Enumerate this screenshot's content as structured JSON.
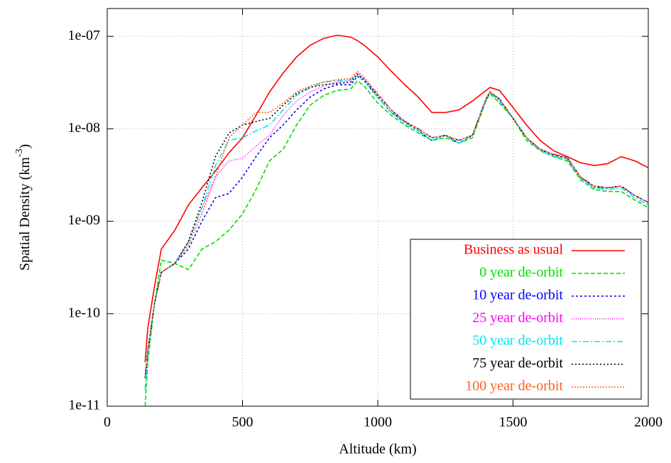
{
  "chart_data": {
    "type": "line",
    "log_y": true,
    "grid": true,
    "legend": "lower right",
    "x_label": "Altitude (km)",
    "y_label": "Spatial Density (km",
    "y_label_sup": "-3",
    "y_label_end": ")",
    "xlim": [
      0,
      2000
    ],
    "xticks": [
      0,
      500,
      1000,
      1500,
      2000
    ],
    "ylim": [
      1e-11,
      2e-07
    ],
    "yticks": [
      {
        "value": 1e-11,
        "label": "1e-11"
      },
      {
        "value": 1e-10,
        "label": "1e-10"
      },
      {
        "value": 1e-09,
        "label": "1e-09"
      },
      {
        "value": 1e-08,
        "label": "1e-08"
      },
      {
        "value": 1e-07,
        "label": "1e-07"
      }
    ],
    "x": [
      140,
      150,
      175,
      200,
      250,
      300,
      350,
      400,
      450,
      500,
      550,
      600,
      650,
      700,
      750,
      800,
      850,
      900,
      925,
      950,
      1000,
      1050,
      1100,
      1150,
      1200,
      1250,
      1300,
      1350,
      1400,
      1415,
      1450,
      1500,
      1550,
      1600,
      1650,
      1700,
      1750,
      1800,
      1850,
      1900,
      1950,
      2000
    ],
    "series": [
      {
        "name": "Business as usual",
        "color": "#ff0000",
        "values": [
          3e-11,
          7e-11,
          2e-10,
          5e-10,
          8e-10,
          1.5e-09,
          2.3e-09,
          3.5e-09,
          5.5e-09,
          8e-09,
          1.4e-08,
          2.5e-08,
          4e-08,
          6e-08,
          8e-08,
          9.5e-08,
          1.03e-07,
          9.8e-08,
          9e-08,
          8e-08,
          6e-08,
          4.2e-08,
          3e-08,
          2.2e-08,
          1.5e-08,
          1.5e-08,
          1.6e-08,
          2e-08,
          2.6e-08,
          2.8e-08,
          2.6e-08,
          1.7e-08,
          1.1e-08,
          7.5e-09,
          5.8e-09,
          5e-09,
          4.3e-09,
          4e-09,
          4.2e-09,
          5e-09,
          4.5e-09,
          3.8e-09
        ]
      },
      {
        "name": "0 year de-orbit",
        "color": "#00dd00",
        "dash": "6,3",
        "values": [
          1e-11,
          3e-11,
          1.3e-10,
          3.8e-10,
          3.5e-10,
          3e-10,
          5e-10,
          6e-10,
          8e-10,
          1.2e-09,
          2.2e-09,
          4.5e-09,
          6e-09,
          1.1e-08,
          1.8e-08,
          2.3e-08,
          2.6e-08,
          2.7e-08,
          3.3e-08,
          2.9e-08,
          1.9e-08,
          1.4e-08,
          1.1e-08,
          9e-09,
          7.5e-09,
          8e-09,
          7e-09,
          8e-09,
          2e-08,
          2.4e-08,
          1.9e-08,
          1.3e-08,
          7.5e-09,
          5.8e-09,
          5e-09,
          4.5e-09,
          2.8e-09,
          2.2e-09,
          2.1e-09,
          2.1e-09,
          1.7e-09,
          1.4e-09
        ]
      },
      {
        "name": "10 year de-orbit",
        "color": "#0000ff",
        "dash": "3,3",
        "values": [
          2e-11,
          4e-11,
          1.3e-10,
          2.8e-10,
          3.5e-10,
          5e-10,
          1e-09,
          1.8e-09,
          2e-09,
          3e-09,
          5e-09,
          8e-09,
          1.1e-08,
          1.6e-08,
          2.2e-08,
          2.7e-08,
          3e-08,
          3e-08,
          3.7e-08,
          3.3e-08,
          2.2e-08,
          1.5e-08,
          1.2e-08,
          9.5e-09,
          7.5e-09,
          8.5e-09,
          7e-09,
          8.5e-09,
          2.1e-08,
          2.5e-08,
          2.1e-08,
          1.3e-08,
          8e-09,
          6e-09,
          5.2e-09,
          4.8e-09,
          3e-09,
          2.3e-09,
          2.3e-09,
          2.4e-09,
          1.9e-09,
          1.6e-09
        ]
      },
      {
        "name": "25 year de-orbit",
        "color": "#ff00ff",
        "dash": "1,2",
        "values": [
          2e-11,
          4e-11,
          1.3e-10,
          2.8e-10,
          3.5e-10,
          6e-10,
          1.4e-09,
          3e-09,
          4.5e-09,
          4.8e-09,
          6.5e-09,
          8.5e-09,
          1.4e-08,
          2e-08,
          2.5e-08,
          2.9e-08,
          3.2e-08,
          3.3e-08,
          4e-08,
          3.5e-08,
          2.4e-08,
          1.6e-08,
          1.2e-08,
          1e-08,
          8e-09,
          8.5e-09,
          7.5e-09,
          8.5e-09,
          2.1e-08,
          2.5e-08,
          2.1e-08,
          1.3e-08,
          8e-09,
          6e-09,
          5.3e-09,
          4.9e-09,
          3e-09,
          2.4e-09,
          2.3e-09,
          2.4e-09,
          1.9e-09,
          1.6e-09
        ]
      },
      {
        "name": "50 year de-orbit",
        "color": "#00e5ee",
        "dash": "8,3,2,3",
        "values": [
          1.5e-11,
          3.5e-11,
          1.3e-10,
          2.8e-10,
          3.5e-10,
          6e-10,
          1.4e-09,
          4e-09,
          7.5e-09,
          8e-09,
          9.5e-09,
          1.1e-08,
          1.6e-08,
          2.3e-08,
          2.8e-08,
          3.2e-08,
          3.3e-08,
          3.4e-08,
          3.8e-08,
          3.3e-08,
          2.2e-08,
          1.5e-08,
          1.15e-08,
          9.5e-09,
          7.5e-09,
          8.5e-09,
          7e-09,
          8.5e-09,
          2e-08,
          2.5e-08,
          2e-08,
          1.3e-08,
          8e-09,
          5.8e-09,
          5e-09,
          4.7e-09,
          2.9e-09,
          2.3e-09,
          2.2e-09,
          2.3e-09,
          1.8e-09,
          1.5e-09
        ]
      },
      {
        "name": "75 year de-orbit",
        "color": "#000000",
        "dash": "2,3",
        "values": [
          2e-11,
          4e-11,
          1.3e-10,
          2.8e-10,
          3.5e-10,
          6e-10,
          1.6e-09,
          5e-09,
          9e-09,
          1.1e-08,
          1.2e-08,
          1.3e-08,
          1.8e-08,
          2.4e-08,
          2.8e-08,
          3e-08,
          3.1e-08,
          3.2e-08,
          3.9e-08,
          3.4e-08,
          2.3e-08,
          1.6e-08,
          1.2e-08,
          1e-08,
          8e-09,
          8.5e-09,
          7.5e-09,
          8.5e-09,
          2.1e-08,
          2.5e-08,
          2.1e-08,
          1.3e-08,
          8e-09,
          6e-09,
          5.3e-09,
          4.9e-09,
          3e-09,
          2.4e-09,
          2.3e-09,
          2.4e-09,
          1.9e-09,
          1.6e-09
        ]
      },
      {
        "name": "100 year de-orbit",
        "color": "#ff6020",
        "dash": "2,2",
        "values": [
          2e-11,
          4e-11,
          1.3e-10,
          2.8e-10,
          3.5e-10,
          5.5e-10,
          1.2e-09,
          3e-09,
          8e-09,
          1.1e-08,
          1.5e-08,
          1.5e-08,
          1.9e-08,
          2.5e-08,
          2.9e-08,
          3.2e-08,
          3.4e-08,
          3.5e-08,
          4.2e-08,
          3.6e-08,
          2.4e-08,
          1.6e-08,
          1.2e-08,
          1e-08,
          8e-09,
          8.5e-09,
          7.5e-09,
          8.5e-09,
          2.1e-08,
          2.5e-08,
          2.1e-08,
          1.3e-08,
          8e-09,
          6e-09,
          5.3e-09,
          4.9e-09,
          3e-09,
          2.4e-09,
          2.3e-09,
          2.4e-09,
          1.9e-09,
          1.6e-09
        ]
      }
    ]
  }
}
